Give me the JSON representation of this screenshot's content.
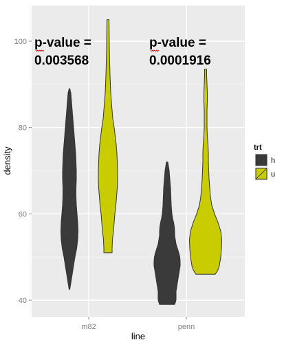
{
  "chart_data": {
    "type": "violin",
    "title": "",
    "xlabel": "line",
    "ylabel": "density",
    "categories": [
      "m82",
      "penn"
    ],
    "ylim": [
      37,
      110
    ],
    "yticks": [
      40,
      60,
      80,
      100
    ],
    "grid": true,
    "legend": {
      "title": "trt",
      "position": "right",
      "entries": [
        {
          "label": "h",
          "color": "#3a3a3a"
        },
        {
          "label": "u",
          "color": "#c8cc00"
        }
      ]
    },
    "series": [
      {
        "name": "h",
        "color": "#3a3a3a",
        "violins": [
          {
            "category": "m82",
            "min": 42.5,
            "max": 89,
            "profile": [
              [
                42.5,
                0.5
              ],
              [
                44,
                2
              ],
              [
                46,
                4
              ],
              [
                48,
                6
              ],
              [
                50,
                8
              ],
              [
                52,
                10.5
              ],
              [
                54,
                12
              ],
              [
                56,
                12.5
              ],
              [
                58,
                12
              ],
              [
                60,
                11
              ],
              [
                62,
                10
              ],
              [
                64,
                9.5
              ],
              [
                66,
                9.5
              ],
              [
                68,
                10
              ],
              [
                70,
                10
              ],
              [
                72,
                9.5
              ],
              [
                74,
                9
              ],
              [
                76,
                8
              ],
              [
                78,
                7
              ],
              [
                80,
                6
              ],
              [
                82,
                5
              ],
              [
                84,
                4
              ],
              [
                86,
                3
              ],
              [
                88,
                2
              ],
              [
                89,
                0.5
              ]
            ]
          },
          {
            "category": "penn",
            "min": 39,
            "max": 72,
            "profile": [
              [
                39,
                11
              ],
              [
                40,
                13
              ],
              [
                41,
                13
              ],
              [
                42,
                13
              ],
              [
                43,
                14
              ],
              [
                44,
                15
              ],
              [
                45,
                16
              ],
              [
                46,
                17
              ],
              [
                47,
                18
              ],
              [
                48,
                19
              ],
              [
                49,
                19
              ],
              [
                50,
                18.5
              ],
              [
                51,
                17
              ],
              [
                52,
                15
              ],
              [
                53,
                13
              ],
              [
                54,
                12
              ],
              [
                55,
                11
              ],
              [
                56,
                11
              ],
              [
                57,
                10.5
              ],
              [
                58,
                9.5
              ],
              [
                59,
                8
              ],
              [
                60,
                7
              ],
              [
                62,
                6
              ],
              [
                64,
                5.5
              ],
              [
                66,
                5
              ],
              [
                68,
                4
              ],
              [
                70,
                3
              ],
              [
                72,
                1
              ]
            ]
          }
        ]
      },
      {
        "name": "u",
        "color": "#c8cc00",
        "violins": [
          {
            "category": "m82",
            "min": 51,
            "max": 105,
            "profile": [
              [
                51,
                6
              ],
              [
                52,
                6
              ],
              [
                54,
                6.5
              ],
              [
                56,
                8
              ],
              [
                58,
                9
              ],
              [
                60,
                10
              ],
              [
                62,
                11.5
              ],
              [
                64,
                12.5
              ],
              [
                66,
                13.5
              ],
              [
                68,
                14
              ],
              [
                70,
                14
              ],
              [
                72,
                13.5
              ],
              [
                74,
                13
              ],
              [
                76,
                12
              ],
              [
                78,
                10.5
              ],
              [
                80,
                9
              ],
              [
                82,
                7
              ],
              [
                84,
                6
              ],
              [
                86,
                5
              ],
              [
                88,
                4
              ],
              [
                90,
                3.5
              ],
              [
                92,
                3
              ],
              [
                95,
                2.5
              ],
              [
                98,
                2
              ],
              [
                101,
                1.8
              ],
              [
                105,
                1.5
              ]
            ]
          },
          {
            "category": "penn",
            "min": 46,
            "max": 93.5,
            "profile": [
              [
                46,
                14
              ],
              [
                47,
                18
              ],
              [
                48,
                20
              ],
              [
                49,
                21
              ],
              [
                50,
                22
              ],
              [
                52,
                23
              ],
              [
                54,
                23.5
              ],
              [
                56,
                22
              ],
              [
                58,
                18
              ],
              [
                60,
                13
              ],
              [
                62,
                9
              ],
              [
                64,
                7
              ],
              [
                66,
                6
              ],
              [
                68,
                5
              ],
              [
                70,
                4.5
              ],
              [
                72,
                4
              ],
              [
                74,
                4
              ],
              [
                76,
                3.5
              ],
              [
                78,
                2.5
              ],
              [
                80,
                2
              ],
              [
                82,
                2
              ],
              [
                84,
                2
              ],
              [
                86,
                2.5
              ],
              [
                88,
                2.5
              ],
              [
                90,
                2
              ],
              [
                92,
                1.5
              ],
              [
                93.5,
                1.5
              ]
            ]
          }
        ]
      }
    ],
    "annotations": [
      {
        "line1": "p-value =",
        "line2": "0.003568",
        "category": "m82"
      },
      {
        "line1": "p-value =",
        "line2": "0.0001916",
        "category": "penn"
      }
    ]
  }
}
